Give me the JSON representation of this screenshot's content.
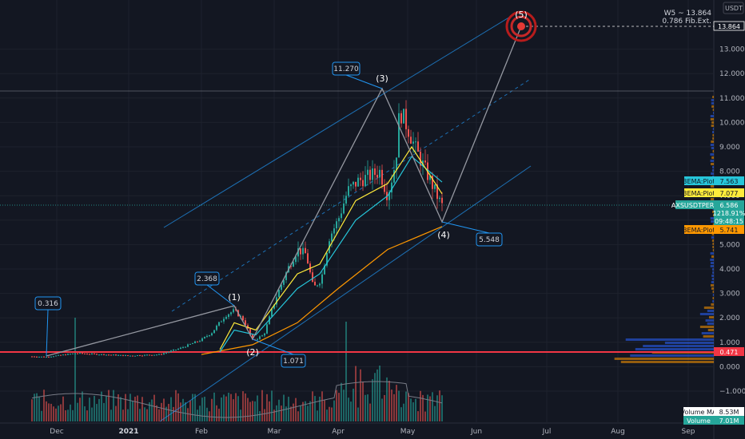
{
  "price_scale": {
    "currency": "USDT",
    "right_label_top": "W5 ~ 13.864",
    "right_label_sub": "0.786 Fib.Ext.",
    "ticks": [
      "13.000",
      "12.000",
      "11.000",
      "10.000",
      "9.000",
      "8.000",
      "7.000",
      "6.000",
      "5.000",
      "4.000",
      "3.000",
      "2.000",
      "1.000",
      "0.000",
      "−1.000"
    ],
    "ticks_values": [
      13,
      12,
      11,
      10,
      9,
      8,
      7,
      6,
      5,
      4,
      3,
      2,
      1,
      0,
      -1
    ]
  },
  "time_scale": {
    "labels": [
      "Dec",
      "2021",
      "Feb",
      "Mar",
      "Apr",
      "May",
      "Jun",
      "Jul",
      "Aug",
      "Sep"
    ]
  },
  "tags": [
    {
      "text": "13.864",
      "color": "#ffffff",
      "bg": "#131722",
      "border": "#ffffff"
    },
    {
      "text": "3EMA:Plot · 7.563",
      "color": "#131722",
      "bg": "#26c6da"
    },
    {
      "text": "3EMA:Plot · 7.077",
      "color": "#131722",
      "bg": "#ffeb3b"
    },
    {
      "text": "AXSUSDTPERP · 6.586",
      "color": "#ffffff",
      "bg": "#26a69a"
    },
    {
      "text": "1218.91%",
      "color": "#ffffff",
      "bg": "#26a69a"
    },
    {
      "text": "09:48:15",
      "color": "#ffffff",
      "bg": "#26a69a"
    },
    {
      "text": "3EMA:Plot · 5.741",
      "color": "#131722",
      "bg": "#ff9800"
    },
    {
      "text": "0.471",
      "color": "#ffffff",
      "bg": "#f23645"
    },
    {
      "text": "Volume MA · 8.53M",
      "color": "#131722",
      "bg": "#ffffff"
    },
    {
      "text": "Volume · 7.01M",
      "color": "#ffffff",
      "bg": "#26a69a"
    }
  ],
  "callouts": [
    "0.316",
    "2.368",
    "1.071",
    "11.270",
    "5.548"
  ],
  "waves": [
    "(1)",
    "(2)",
    "(3)",
    "(4)",
    "(5)"
  ],
  "chart_data": {
    "type": "line",
    "symbol": "AXSUSDTPERP",
    "ylim": [
      -1.9,
      14.5
    ],
    "x_labels": [
      "Dec",
      "2021",
      "Feb",
      "Mar",
      "Apr",
      "May",
      "Jun",
      "Jul",
      "Aug",
      "Sep"
    ],
    "series": [
      {
        "name": "AXSUSDTPERP",
        "color": "#26a69a",
        "points": [
          [
            "Nov 20",
            0.42
          ],
          [
            "Dec 1",
            0.4
          ],
          [
            "Dec 15",
            0.55
          ],
          [
            "Jan 1",
            0.45
          ],
          [
            "Jan 15",
            0.5
          ],
          [
            "Feb 1",
            0.7
          ],
          [
            "Feb 10",
            1.1
          ],
          [
            "Feb 20",
            2.3
          ],
          [
            "Feb 28",
            1.9
          ],
          [
            "Mar 5",
            1.07
          ],
          [
            "Mar 12",
            2.8
          ],
          [
            "Mar 20",
            4.6
          ],
          [
            "Mar 27",
            4.9
          ],
          [
            "Apr 3",
            3.6
          ],
          [
            "Apr 10",
            6.6
          ],
          [
            "Apr 17",
            7.5
          ],
          [
            "Apr 24",
            8.0
          ],
          [
            "May 1",
            7.2
          ],
          [
            "May 5",
            10.5
          ],
          [
            "May 10",
            9.5
          ],
          [
            "May 15",
            8.2
          ],
          [
            "May 19",
            6.8
          ],
          [
            "May 21",
            6.59
          ]
        ]
      },
      {
        "name": "3EMA:Plot",
        "color": "#ffeb3b",
        "points": [
          [
            "Feb 10",
            0.7
          ],
          [
            "Feb 20",
            1.8
          ],
          [
            "Mar 5",
            1.5
          ],
          [
            "Mar 20",
            3.8
          ],
          [
            "Apr 3",
            4.2
          ],
          [
            "Apr 17",
            6.8
          ],
          [
            "May 1",
            7.5
          ],
          [
            "May 10",
            9.0
          ],
          [
            "May 21",
            7.08
          ]
        ]
      },
      {
        "name": "3EMA:Plot",
        "color": "#26c6da",
        "points": [
          [
            "Feb 10",
            0.6
          ],
          [
            "Feb 20",
            1.5
          ],
          [
            "Mar 5",
            1.3
          ],
          [
            "Mar 20",
            3.2
          ],
          [
            "Apr 3",
            3.8
          ],
          [
            "Apr 17",
            6.0
          ],
          [
            "May 1",
            7.0
          ],
          [
            "May 10",
            8.6
          ],
          [
            "May 21",
            7.56
          ]
        ]
      },
      {
        "name": "3EMA:Plot",
        "color": "#ff9800",
        "points": [
          [
            "Feb 1",
            0.5
          ],
          [
            "Mar 1",
            0.9
          ],
          [
            "Mar 20",
            1.8
          ],
          [
            "Apr 10",
            3.2
          ],
          [
            "May 1",
            4.8
          ],
          [
            "May 21",
            5.74
          ]
        ]
      }
    ],
    "wave_points": [
      {
        "label": "(1)",
        "value": 2.368
      },
      {
        "label": "(2)",
        "value": 1.071
      },
      {
        "label": "(3)",
        "value": 11.27
      },
      {
        "label": "(4)",
        "value": 5.548
      },
      {
        "label": "(5)",
        "value": 13.864
      }
    ],
    "fib_target": {
      "label": "W5 ~ 13.864",
      "sub": "0.786 Fib.Ext.",
      "value": 13.864
    },
    "support_level": 0.471
  }
}
